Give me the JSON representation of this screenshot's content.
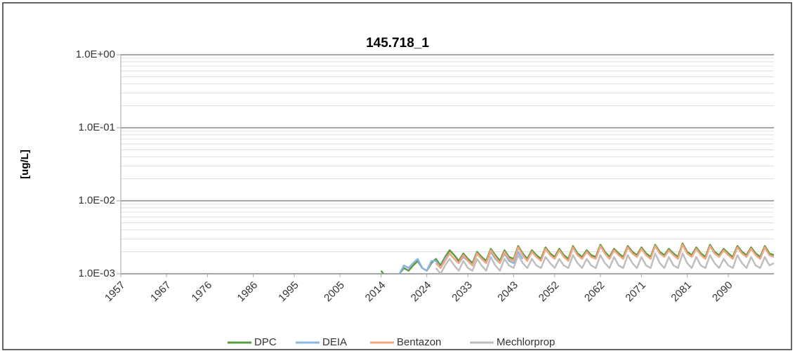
{
  "chart_data": {
    "type": "line",
    "title": "145.718_1",
    "ylabel": "[ug/L]",
    "log_y": true,
    "grid": true,
    "legend": "bottom",
    "xlim": [
      1957,
      2100
    ],
    "xticks": [
      1957,
      1967,
      1976,
      1986,
      1995,
      2005,
      2014,
      2024,
      2033,
      2043,
      2052,
      2062,
      2071,
      2081,
      2090
    ],
    "ylim": [
      0.001,
      1
    ],
    "yticks": [
      {
        "value": 0.001,
        "label": "1.0E-03"
      },
      {
        "value": 0.01,
        "label": "1.0E-02"
      },
      {
        "value": 0.1,
        "label": "1.0E-01"
      },
      {
        "value": 1,
        "label": "1.0E+00"
      }
    ],
    "x": [
      2014,
      2015,
      2016,
      2017,
      2018,
      2019,
      2020,
      2021,
      2022,
      2023,
      2024,
      2025,
      2026,
      2027,
      2028,
      2029,
      2030,
      2031,
      2032,
      2033,
      2034,
      2035,
      2036,
      2037,
      2038,
      2039,
      2040,
      2041,
      2042,
      2043,
      2044,
      2045,
      2046,
      2047,
      2048,
      2049,
      2050,
      2051,
      2052,
      2053,
      2054,
      2055,
      2056,
      2057,
      2058,
      2059,
      2060,
      2061,
      2062,
      2063,
      2064,
      2065,
      2066,
      2067,
      2068,
      2069,
      2070,
      2071,
      2072,
      2073,
      2074,
      2075,
      2076,
      2077,
      2078,
      2079,
      2080,
      2081,
      2082,
      2083,
      2084,
      2085,
      2086,
      2087,
      2088,
      2089,
      2090,
      2091,
      2092,
      2093,
      2094,
      2095,
      2096,
      2097,
      2098,
      2099,
      2100
    ],
    "series": [
      {
        "name": "DPC",
        "color": "#5b9a3e",
        "values": [
          0.0011,
          0.0009,
          0.0008,
          0.0009,
          0.001,
          0.0012,
          0.0011,
          0.0013,
          0.0015,
          0.0012,
          0.0011,
          0.0014,
          0.0016,
          0.0013,
          0.0017,
          0.0021,
          0.0018,
          0.0015,
          0.0019,
          0.0016,
          0.0014,
          0.002,
          0.0017,
          0.0015,
          0.0022,
          0.0018,
          0.0015,
          0.0021,
          0.0017,
          0.0016,
          0.0024,
          0.0019,
          0.0016,
          0.0021,
          0.0018,
          0.0016,
          0.0023,
          0.0019,
          0.0017,
          0.0022,
          0.0018,
          0.0016,
          0.0024,
          0.0019,
          0.0017,
          0.0021,
          0.0018,
          0.0017,
          0.0025,
          0.002,
          0.0017,
          0.0022,
          0.0019,
          0.0017,
          0.0024,
          0.002,
          0.0018,
          0.0023,
          0.0019,
          0.0017,
          0.0025,
          0.002,
          0.0018,
          0.0022,
          0.0019,
          0.0017,
          0.0026,
          0.002,
          0.0018,
          0.0023,
          0.0019,
          0.0017,
          0.0025,
          0.002,
          0.0018,
          0.0022,
          0.0019,
          0.0017,
          0.0024,
          0.002,
          0.0018,
          0.0023,
          0.0019,
          0.0017,
          0.0024,
          0.0019,
          0.0018
        ]
      },
      {
        "name": "DEIA",
        "color": "#8eb4e3",
        "values": [
          0.001,
          0.0008,
          0.0008,
          0.0009,
          0.001,
          0.0013,
          0.0012,
          0.0014,
          0.0016,
          0.0012,
          0.0011,
          0.0015,
          0.0015,
          0.0012,
          0.0016,
          0.0019,
          0.0016,
          0.0014,
          0.0017,
          0.0015,
          0.0013,
          0.0019,
          0.0016,
          0.0014,
          0.002,
          0.0016,
          0.0014,
          0.0019,
          0.0015,
          0.0014,
          0.002,
          0.0016,
          null,
          null,
          null,
          null,
          null,
          null,
          null,
          null,
          null,
          null,
          null,
          null,
          null,
          null,
          null,
          null,
          null,
          null,
          null,
          null,
          null,
          null,
          null,
          null,
          null,
          null,
          null,
          null,
          null,
          null,
          null,
          null,
          null,
          null,
          null,
          null,
          null,
          null,
          null,
          null,
          null,
          null,
          null,
          null,
          null,
          null,
          null,
          null,
          null,
          null,
          null,
          null,
          null,
          null,
          null
        ]
      },
      {
        "name": "Bentazon",
        "color": "#f4a582",
        "values": [
          null,
          null,
          null,
          null,
          null,
          null,
          null,
          null,
          null,
          null,
          null,
          null,
          0.0014,
          0.0012,
          0.0015,
          0.0019,
          0.0016,
          0.0014,
          0.0018,
          0.0015,
          0.0013,
          0.0019,
          0.0016,
          0.0014,
          0.0021,
          0.0017,
          0.0014,
          0.002,
          0.0016,
          0.0015,
          0.0023,
          0.0018,
          0.0015,
          0.002,
          0.0017,
          0.0015,
          0.0022,
          0.0018,
          0.0016,
          0.0021,
          0.0017,
          0.0015,
          0.0023,
          0.0018,
          0.0016,
          0.002,
          0.0017,
          0.0016,
          0.0024,
          0.0019,
          0.0016,
          0.0021,
          0.0018,
          0.0016,
          0.0023,
          0.0019,
          0.0017,
          0.0022,
          0.0018,
          0.0016,
          0.0024,
          0.0019,
          0.0017,
          0.0021,
          0.0018,
          0.0016,
          0.0025,
          0.0019,
          0.0017,
          0.0022,
          0.0018,
          0.0016,
          0.0024,
          0.0019,
          0.0017,
          0.0021,
          0.0018,
          0.0016,
          0.0023,
          0.0019,
          0.0017,
          0.0022,
          0.0018,
          0.0016,
          0.0023,
          0.0018,
          0.0017
        ]
      },
      {
        "name": "Mechlorprop",
        "color": "#bfbfbf",
        "values": [
          null,
          null,
          null,
          null,
          null,
          null,
          null,
          null,
          null,
          null,
          null,
          null,
          0.0012,
          0.001,
          0.0013,
          0.0016,
          0.0013,
          0.0011,
          0.0015,
          0.0012,
          0.0011,
          0.0016,
          0.0013,
          0.0011,
          0.0017,
          0.0013,
          0.0011,
          0.0016,
          0.0013,
          0.0012,
          0.0018,
          0.0014,
          0.0012,
          0.0016,
          0.0013,
          0.0012,
          0.0017,
          0.0014,
          0.0012,
          0.0016,
          0.0013,
          0.0012,
          0.0018,
          0.0014,
          0.0012,
          0.0016,
          0.0013,
          0.0012,
          0.0018,
          0.0014,
          0.0012,
          0.0017,
          0.0013,
          0.0012,
          0.0018,
          0.0014,
          0.0012,
          0.0017,
          0.0013,
          0.0012,
          0.0019,
          0.0014,
          0.0012,
          0.0017,
          0.0013,
          0.0012,
          0.0019,
          0.0014,
          0.0012,
          0.0017,
          0.0013,
          0.0012,
          0.0018,
          0.0014,
          0.0012,
          0.0016,
          0.0013,
          0.0012,
          0.0018,
          0.0014,
          0.0012,
          0.0017,
          0.0013,
          0.0012,
          0.0017,
          0.0013,
          0.0014
        ]
      }
    ]
  }
}
